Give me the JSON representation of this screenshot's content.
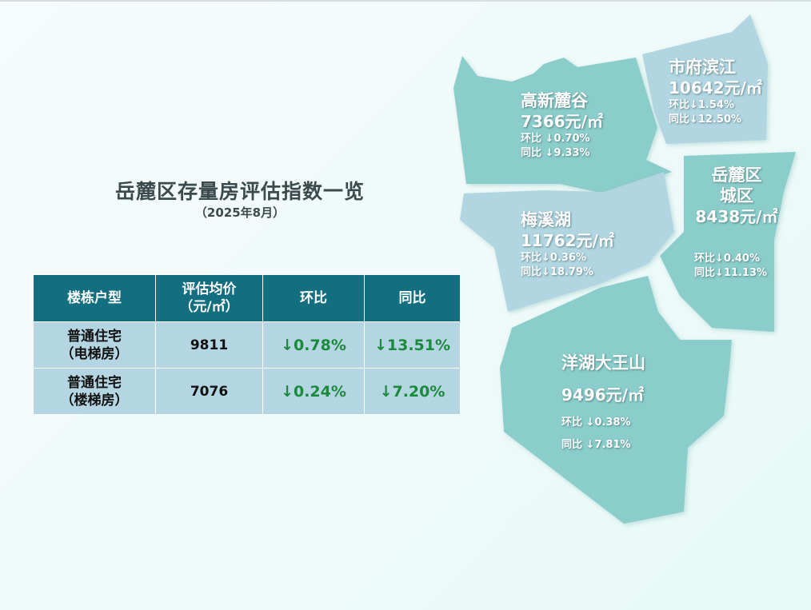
{
  "header": {
    "title": "岳麓区存量房评估指数一览",
    "subtitle": "（2025年8月）"
  },
  "table": {
    "columns": [
      "楼栋户型",
      "评估均价\n（元/㎡）",
      "环比",
      "同比"
    ],
    "rows": [
      {
        "type": "普通住宅\n（电梯房）",
        "price": "9811",
        "mom": "↓0.78%",
        "yoy": "↓13.51%"
      },
      {
        "type": "普通住宅\n（楼梯房）",
        "price": "7076",
        "mom": "↓0.24%",
        "yoy": "↓7.20%"
      }
    ]
  },
  "colors": {
    "header_bg": "#136e80",
    "row_bg": "#b4d6e2",
    "down": "#1b8a3c",
    "region_teal": "#8acdcb",
    "region_blue": "#b1d6e1"
  },
  "map": {
    "regions": [
      {
        "name": "高新麓谷",
        "price": "7366元/㎡",
        "mom": "环比 ↓0.70%",
        "yoy": "同比 ↓9.33%",
        "color": "#8acdcb"
      },
      {
        "name": "市府滨江",
        "price": "10642元/㎡",
        "mom": "环比↓1.54%",
        "yoy": "同比↓12.50%",
        "color": "#b1d6e1"
      },
      {
        "name": "梅溪湖",
        "price": "11762元/㎡",
        "mom": "环比↓0.36%",
        "yoy": "同比↓18.79%",
        "color": "#b1d6e1"
      },
      {
        "name": "岳麓区\n城区",
        "price": "8438元/㎡",
        "mom": "环比↓0.40%",
        "yoy": "同比↓11.13%",
        "color": "#8acdcb"
      },
      {
        "name": "洋湖大王山",
        "price": "9496元/㎡",
        "mom": "环比 ↓0.38%",
        "yoy": "同比 ↓7.81%",
        "color": "#8acdcb"
      }
    ]
  }
}
